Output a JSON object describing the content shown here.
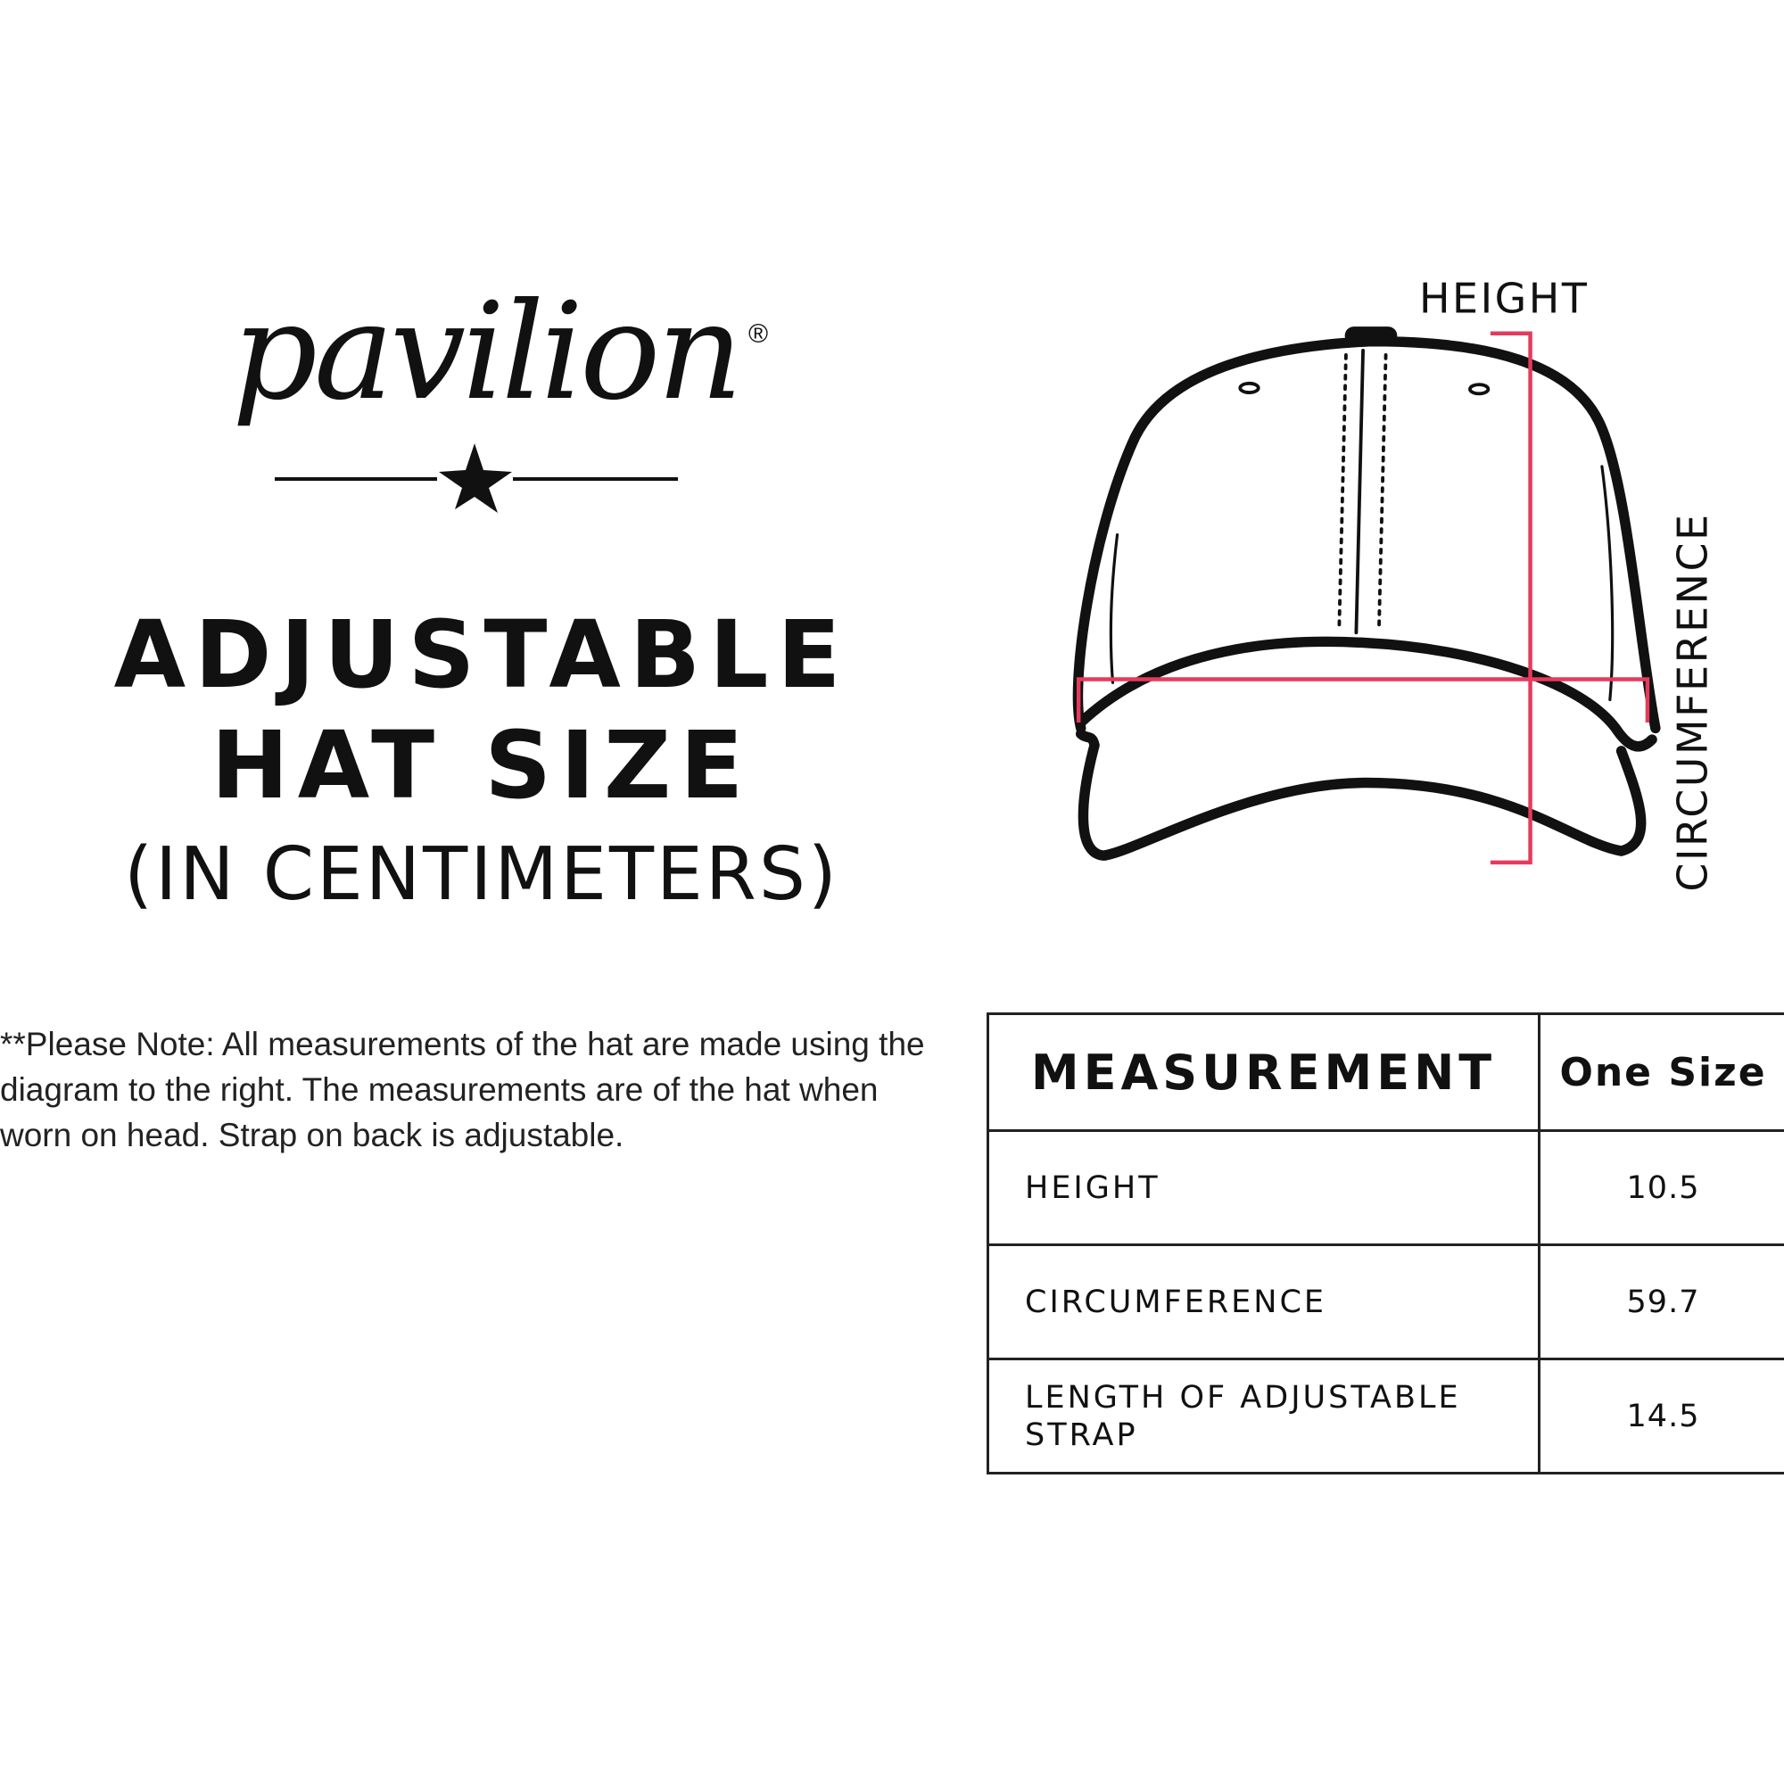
{
  "brand": {
    "logo_text": "pavilion",
    "registered_mark": "®"
  },
  "title": {
    "line1": "ADJUSTABLE",
    "line2": "HAT SIZE",
    "unit": "(IN CENTIMETERS)"
  },
  "note": "**Please Note:  All measurements of the hat are made using the diagram to the right.  The measurements are of the hat when worn on head. Strap on back is adjustable.",
  "diagram": {
    "height_label": "HEIGHT",
    "circumference_label": "CIRCUMFERENCE",
    "accent_color": "#e63a5c"
  },
  "table": {
    "headers": [
      "MEASUREMENT",
      "One Size"
    ],
    "rows": [
      {
        "label": "HEIGHT",
        "value": "10.5"
      },
      {
        "label": "CIRCUMFERENCE",
        "value": "59.7"
      },
      {
        "label": "LENGTH OF ADJUSTABLE STRAP",
        "value": "14.5"
      }
    ]
  }
}
